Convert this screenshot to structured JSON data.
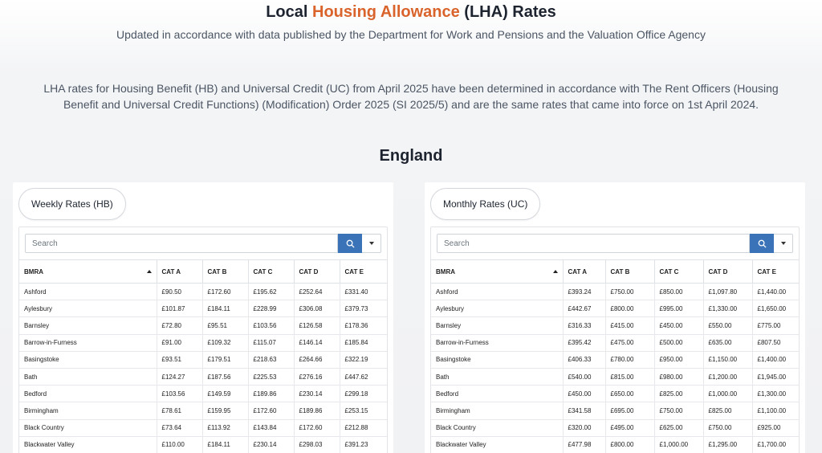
{
  "header": {
    "title_prefix": "Local ",
    "title_accent": "Housing Allowance",
    "title_suffix": " (LHA) Rates",
    "subtitle": "Updated in accordance with data published by the Department for Work and Pensions and the Valuation Office Agency",
    "intro": "LHA rates for Housing Benefit (HB) and Universal Credit (UC) from April 2025 have been determined in accordance with The Rent Officers (Housing Benefit and Universal Credit Functions) (Modification) Order 2025 (SI 2025/5) and are the same rates that came into force on 1st April 2024.",
    "region": "England"
  },
  "colors": {
    "accent": "#d9632b",
    "search_button": "#3a73b8"
  },
  "weekly": {
    "pill": "Weekly Rates (HB)",
    "search_placeholder": "Search",
    "columns": [
      "BMRA",
      "CAT A",
      "CAT B",
      "CAT C",
      "CAT D",
      "CAT E"
    ],
    "rows": [
      [
        "Ashford",
        "£90.50",
        "£172.60",
        "£195.62",
        "£252.64",
        "£331.40"
      ],
      [
        "Aylesbury",
        "£101.87",
        "£184.11",
        "£228.99",
        "£306.08",
        "£379.73"
      ],
      [
        "Barnsley",
        "£72.80",
        "£95.51",
        "£103.56",
        "£126.58",
        "£178.36"
      ],
      [
        "Barrow-in-Furness",
        "£91.00",
        "£109.32",
        "£115.07",
        "£146.14",
        "£185.84"
      ],
      [
        "Basingstoke",
        "£93.51",
        "£179.51",
        "£218.63",
        "£264.66",
        "£322.19"
      ],
      [
        "Bath",
        "£124.27",
        "£187.56",
        "£225.53",
        "£276.16",
        "£447.62"
      ],
      [
        "Bedford",
        "£103.56",
        "£149.59",
        "£189.86",
        "£230.14",
        "£299.18"
      ],
      [
        "Birmingham",
        "£78.61",
        "£159.95",
        "£172.60",
        "£189.86",
        "£253.15"
      ],
      [
        "Black Country",
        "£73.64",
        "£113.92",
        "£143.84",
        "£172.60",
        "£212.88"
      ],
      [
        "Blackwater Valley",
        "£110.00",
        "£184.11",
        "£230.14",
        "£298.03",
        "£391.23"
      ]
    ]
  },
  "monthly": {
    "pill": "Monthly Rates (UC)",
    "search_placeholder": "Search",
    "columns": [
      "BMRA",
      "CAT A",
      "CAT B",
      "CAT C",
      "CAT D",
      "CAT E"
    ],
    "rows": [
      [
        "Ashford",
        "£393.24",
        "£750.00",
        "£850.00",
        "£1,097.80",
        "£1,440.00"
      ],
      [
        "Aylesbury",
        "£442.67",
        "£800.00",
        "£995.00",
        "£1,330.00",
        "£1,650.00"
      ],
      [
        "Barnsley",
        "£316.33",
        "£415.00",
        "£450.00",
        "£550.00",
        "£775.00"
      ],
      [
        "Barrow-in-Furness",
        "£395.42",
        "£475.00",
        "£500.00",
        "£635.00",
        "£807.50"
      ],
      [
        "Basingstoke",
        "£406.33",
        "£780.00",
        "£950.00",
        "£1,150.00",
        "£1,400.00"
      ],
      [
        "Bath",
        "£540.00",
        "£815.00",
        "£980.00",
        "£1,200.00",
        "£1,945.00"
      ],
      [
        "Bedford",
        "£450.00",
        "£650.00",
        "£825.00",
        "£1,000.00",
        "£1,300.00"
      ],
      [
        "Birmingham",
        "£341.58",
        "£695.00",
        "£750.00",
        "£825.00",
        "£1,100.00"
      ],
      [
        "Black Country",
        "£320.00",
        "£495.00",
        "£625.00",
        "£750.00",
        "£925.00"
      ],
      [
        "Blackwater Valley",
        "£477.98",
        "£800.00",
        "£1,000.00",
        "£1,295.00",
        "£1,700.00"
      ]
    ]
  }
}
